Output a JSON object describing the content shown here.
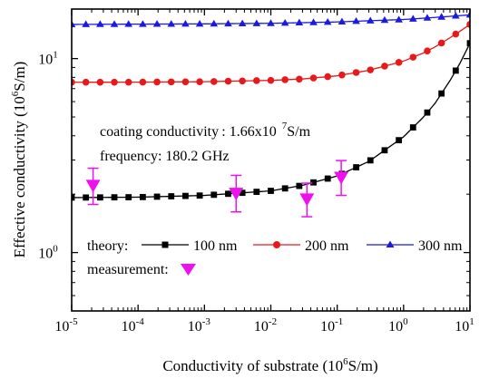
{
  "chart_data": {
    "type": "line",
    "xlabel_main": "Conductivity of substrate (10",
    "xlabel_sup": "6",
    "xlabel_tail": "S/m)",
    "ylabel_main": "Effective conductivity (10",
    "ylabel_sup": "6",
    "ylabel_tail": "S/m)",
    "x_scale": "log",
    "y_scale": "log",
    "xlim": [
      1e-05,
      10
    ],
    "ylim": [
      0.5,
      18
    ],
    "x_ticks": [
      {
        "base": "10",
        "exp": "-5",
        "value": 1e-05
      },
      {
        "base": "10",
        "exp": "-4",
        "value": 0.0001
      },
      {
        "base": "10",
        "exp": "-3",
        "value": 0.001
      },
      {
        "base": "10",
        "exp": "-2",
        "value": 0.01
      },
      {
        "base": "10",
        "exp": "-1",
        "value": 0.1
      },
      {
        "base": "10",
        "exp": "0",
        "value": 1
      },
      {
        "base": "10",
        "exp": "1",
        "value": 10
      }
    ],
    "y_ticks": [
      {
        "base": "10",
        "exp": "0",
        "value": 1
      },
      {
        "base": "10",
        "exp": "1",
        "value": 10
      }
    ],
    "annotations": {
      "coating_prefix": "coating conductivity : ",
      "coating_value": "1.66x10",
      "coating_exp": "7",
      "coating_unit": "S/m",
      "frequency": "frequency: 180.2 GHz"
    },
    "series": [
      {
        "name": "100 nm",
        "color": "#000000",
        "marker": "square",
        "x": [
          1e-05,
          0.0001,
          0.001,
          0.01,
          0.03,
          0.1,
          0.3,
          1,
          2,
          3,
          5,
          7,
          10
        ],
        "y": [
          1.92,
          1.93,
          1.97,
          2.08,
          2.22,
          2.48,
          2.95,
          3.95,
          5.0,
          5.9,
          7.7,
          9.4,
          12.0
        ]
      },
      {
        "name": "200 nm",
        "color": "#e8191b",
        "marker": "circle",
        "x": [
          1e-05,
          0.0001,
          0.001,
          0.01,
          0.03,
          0.1,
          0.3,
          1,
          2,
          3,
          5,
          7,
          10
        ],
        "y": [
          7.55,
          7.56,
          7.6,
          7.72,
          7.85,
          8.15,
          8.7,
          9.7,
          10.7,
          11.5,
          12.8,
          13.8,
          15.0
        ]
      },
      {
        "name": "300 nm",
        "color": "#1a1ae0",
        "marker": "triangle",
        "x": [
          1e-05,
          0.0001,
          0.001,
          0.01,
          0.1,
          1,
          3,
          10
        ],
        "y": [
          15.0,
          15.05,
          15.1,
          15.2,
          15.45,
          15.9,
          16.3,
          16.8
        ]
      }
    ],
    "measurement": {
      "name": "measurement:",
      "color": "#ee11ee",
      "marker": "triangle-down",
      "points": [
        {
          "x": 2.1e-05,
          "y": 2.2,
          "ylow": 1.77,
          "yhigh": 2.72
        },
        {
          "x": 0.003,
          "y": 2.0,
          "ylow": 1.62,
          "yhigh": 2.5
        },
        {
          "x": 0.035,
          "y": 1.87,
          "ylow": 1.53,
          "yhigh": 2.28
        },
        {
          "x": 0.115,
          "y": 2.42,
          "ylow": 1.97,
          "yhigh": 2.98
        }
      ]
    },
    "legend": {
      "theory_label": "theory:",
      "measurement_label": "measurement:",
      "placement": "bottom-left"
    }
  }
}
